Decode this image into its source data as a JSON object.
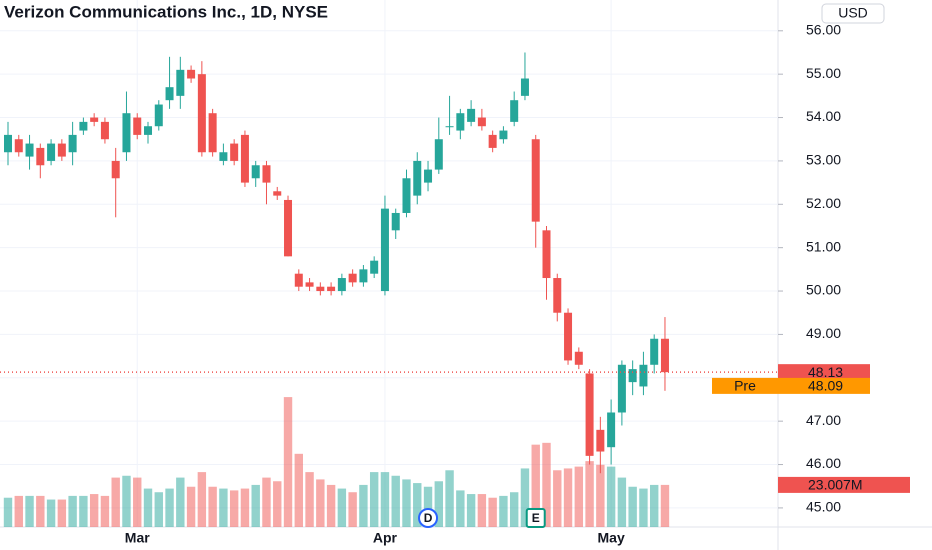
{
  "chart_data": {
    "type": "candlestick",
    "title": "Verizon Communications Inc., 1D, NYSE",
    "currency": "USD",
    "categories": [
      null,
      null,
      null,
      null,
      null,
      null,
      null,
      null,
      null,
      null,
      null,
      null,
      "Mar",
      null,
      null,
      null,
      null,
      null,
      null,
      null,
      null,
      null,
      null,
      null,
      null,
      null,
      null,
      null,
      null,
      null,
      null,
      null,
      null,
      null,
      null,
      "Apr",
      null,
      null,
      null,
      null,
      null,
      null,
      null,
      null,
      null,
      null,
      null,
      null,
      null,
      null,
      null,
      null,
      null,
      null,
      null,
      null,
      "May",
      null,
      null,
      null,
      null,
      null
    ],
    "open": [
      53.2,
      53.5,
      53.1,
      53.3,
      53.0,
      53.4,
      53.2,
      53.7,
      54.0,
      53.9,
      53.0,
      53.2,
      54.0,
      53.6,
      53.8,
      54.4,
      54.5,
      55.1,
      55.0,
      54.1,
      53.0,
      53.4,
      53.6,
      52.6,
      52.9,
      52.3,
      52.1,
      50.4,
      50.2,
      50.1,
      50.1,
      50.0,
      50.4,
      50.2,
      50.4,
      50.0,
      51.4,
      51.8,
      52.2,
      52.5,
      52.8,
      53.8,
      53.7,
      53.9,
      54.0,
      53.6,
      53.5,
      53.9,
      54.5,
      53.5,
      51.4,
      50.3,
      49.5,
      48.6,
      48.1,
      46.8,
      46.4,
      47.2,
      47.9,
      47.8,
      48.3,
      48.9
    ],
    "high": [
      53.9,
      53.6,
      53.6,
      53.4,
      53.5,
      53.5,
      53.9,
      54.0,
      54.1,
      54.0,
      53.3,
      54.6,
      54.1,
      53.9,
      54.4,
      55.4,
      55.4,
      55.2,
      55.3,
      54.2,
      53.4,
      53.5,
      53.7,
      53.0,
      53.0,
      52.4,
      52.2,
      50.5,
      50.3,
      50.2,
      50.2,
      50.4,
      50.5,
      50.6,
      50.8,
      52.2,
      51.9,
      52.8,
      53.2,
      53.0,
      54.0,
      54.5,
      54.2,
      54.4,
      54.2,
      53.7,
      53.8,
      54.6,
      55.5,
      53.6,
      51.5,
      50.4,
      49.6,
      48.7,
      48.2,
      47.1,
      47.5,
      48.4,
      48.4,
      48.6,
      49.0,
      49.4
    ],
    "low": [
      52.9,
      53.1,
      52.8,
      52.6,
      52.9,
      53.0,
      52.9,
      53.6,
      53.8,
      53.4,
      51.7,
      53.0,
      53.5,
      53.4,
      53.7,
      54.2,
      54.2,
      54.8,
      53.1,
      53.1,
      52.9,
      52.9,
      52.4,
      52.4,
      52.0,
      52.1,
      50.8,
      50.0,
      50.0,
      49.9,
      49.9,
      49.9,
      50.1,
      50.1,
      50.3,
      49.9,
      51.2,
      51.7,
      52.0,
      52.3,
      52.7,
      53.6,
      53.5,
      53.8,
      53.7,
      53.2,
      53.4,
      53.8,
      54.4,
      51.0,
      49.8,
      49.3,
      48.3,
      48.2,
      46.0,
      45.8,
      46.0,
      46.9,
      47.6,
      47.6,
      48.1,
      47.7
    ],
    "close": [
      53.6,
      53.2,
      53.4,
      52.9,
      53.4,
      53.1,
      53.6,
      53.9,
      53.9,
      53.5,
      52.6,
      54.1,
      53.6,
      53.8,
      54.3,
      54.7,
      55.1,
      54.9,
      53.2,
      53.2,
      53.2,
      53.0,
      52.5,
      52.9,
      52.5,
      52.2,
      50.8,
      50.1,
      50.1,
      50.0,
      50.0,
      50.3,
      50.2,
      50.5,
      50.7,
      51.9,
      51.8,
      52.6,
      53.0,
      52.8,
      53.5,
      53.8,
      54.1,
      54.2,
      53.8,
      53.3,
      53.7,
      54.4,
      54.9,
      51.6,
      50.3,
      49.5,
      48.4,
      48.3,
      46.2,
      46.3,
      47.2,
      48.3,
      48.2,
      48.3,
      48.9,
      48.13
    ],
    "volume": {
      "values": [
        16,
        17,
        17,
        17,
        15,
        15,
        17,
        17,
        18,
        17,
        27,
        28,
        27,
        21,
        19,
        21,
        27,
        22,
        30,
        22,
        21,
        20,
        21,
        23,
        27,
        25,
        71,
        40,
        30,
        26,
        23,
        21,
        19,
        23,
        30,
        30,
        28,
        26,
        24,
        22,
        25,
        31,
        20,
        18,
        18,
        16,
        17,
        19,
        32,
        45,
        46,
        31,
        32,
        33,
        36,
        34,
        33,
        27,
        22,
        21,
        23,
        23.007
      ],
      "value_labels": [
        null,
        null,
        null,
        null,
        null,
        null,
        null,
        null,
        null,
        null,
        null,
        null,
        null,
        null,
        null,
        null,
        null,
        null,
        null,
        null,
        null,
        null,
        null,
        null,
        null,
        null,
        null,
        null,
        null,
        null,
        null,
        null,
        null,
        null,
        null,
        null,
        null,
        null,
        null,
        null,
        null,
        null,
        null,
        null,
        null,
        null,
        null,
        null,
        null,
        null,
        null,
        null,
        null,
        null,
        null,
        null,
        null,
        null,
        null,
        null,
        null,
        "23.007M"
      ]
    },
    "volume_ylim": [
      0,
      288
    ],
    "ylim": [
      44.56,
      56.71
    ],
    "yticks": [
      {
        "value": 45,
        "label": "45.00"
      },
      {
        "value": 46,
        "label": "46.00"
      },
      {
        "value": 47,
        "label": "47.00"
      },
      {
        "value": 48,
        "label": "48.00"
      },
      {
        "value": 49,
        "label": "49.00"
      },
      {
        "value": 50,
        "label": "50.00"
      },
      {
        "value": 51,
        "label": "51.00"
      },
      {
        "value": 52,
        "label": "52.00"
      },
      {
        "value": 53,
        "label": "53.00"
      },
      {
        "value": 54,
        "label": "54.00"
      },
      {
        "value": 55,
        "label": "55.00"
      },
      {
        "value": 56,
        "label": "56.00"
      }
    ],
    "last_price": {
      "value": 48.13,
      "label": "48.13"
    },
    "premarket": {
      "name": "Pre",
      "value": 48.09,
      "label": "48.09"
    },
    "events": [
      {
        "label": "D",
        "x": 39
      },
      {
        "label": "E",
        "x": 49
      }
    ],
    "up_color": "#26a69a",
    "down_color": "#ef5350",
    "grid": true
  }
}
